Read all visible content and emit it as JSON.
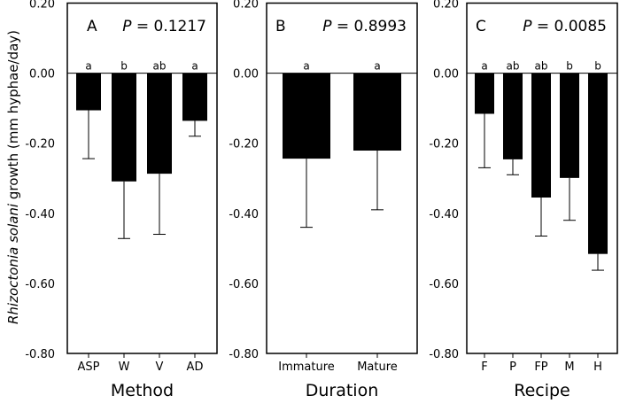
{
  "ylabel_italic": "Rhizoctonia solani",
  "ylabel_rest": " growth (mm hyphae/day)",
  "colors": {
    "bar": "#000000",
    "axis": "#000000",
    "background": "#ffffff"
  },
  "chart_data": [
    {
      "type": "bar",
      "panel": "A",
      "p_label": "P",
      "p_value": "= 0.1217",
      "xlabel": "Method",
      "ylim": [
        -0.8,
        0.2
      ],
      "yticks": [
        "0.20",
        "0.00",
        "-0.20",
        "-0.40",
        "-0.60",
        "-0.80"
      ],
      "categories": [
        "ASP",
        "W",
        "V",
        "AD"
      ],
      "values": [
        -0.106,
        -0.309,
        -0.287,
        -0.136
      ],
      "error_low": [
        -0.244,
        -0.472,
        -0.46,
        -0.18
      ],
      "letters": [
        "a",
        "b",
        "ab",
        "a"
      ]
    },
    {
      "type": "bar",
      "panel": "B",
      "p_label": "P",
      "p_value": "= 0.8993",
      "xlabel": "Duration",
      "ylim": [
        -0.8,
        0.2
      ],
      "yticks": [
        "0.20",
        "0.00",
        "-0.20",
        "-0.40",
        "-0.60",
        "-0.80"
      ],
      "categories": [
        "Immature",
        "Mature"
      ],
      "values": [
        -0.244,
        -0.221
      ],
      "error_low": [
        -0.44,
        -0.39
      ],
      "letters": [
        "a",
        "a"
      ]
    },
    {
      "type": "bar",
      "panel": "C",
      "p_label": "P",
      "p_value": "= 0.0085",
      "xlabel": "Recipe",
      "ylim": [
        -0.8,
        0.2
      ],
      "yticks": [
        "0.20",
        "0.00",
        "-0.20",
        "-0.40",
        "-0.60",
        "-0.80"
      ],
      "categories": [
        "F",
        "P",
        "FP",
        "M",
        "H"
      ],
      "values": [
        -0.116,
        -0.246,
        -0.355,
        -0.299,
        -0.516
      ],
      "error_low": [
        -0.27,
        -0.29,
        -0.465,
        -0.42,
        -0.5625
      ],
      "letters": [
        "a",
        "ab",
        "ab",
        "b",
        "b"
      ]
    }
  ]
}
